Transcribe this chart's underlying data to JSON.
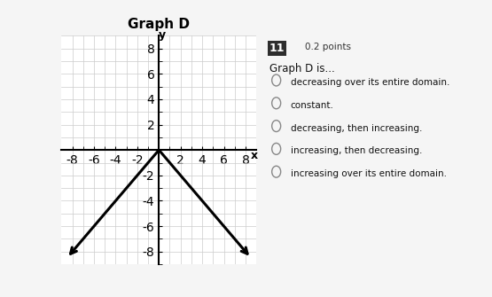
{
  "graph_title": "Graph D",
  "xlabel": "x",
  "ylabel": "y",
  "xlim": [
    -9,
    9
  ],
  "ylim": [
    -9,
    9
  ],
  "xticks": [
    -8,
    -6,
    -4,
    -2,
    2,
    4,
    6,
    8
  ],
  "yticks": [
    -8,
    -6,
    -4,
    -2,
    2,
    4,
    6,
    8
  ],
  "line_x": [
    -8.5,
    0,
    8.5
  ],
  "line_y": [
    -8.5,
    0,
    -8.5
  ],
  "line_color": "#000000",
  "line_width": 2.2,
  "grid_color": "#cccccc",
  "background_color": "#ffffff",
  "panel_bg": "#f0f0f0",
  "question_number": "11",
  "question_points": "0.2 points",
  "question_text": "Graph D is...",
  "options": [
    "decreasing over its entire domain.",
    "constant.",
    "decreasing, then increasing.",
    "increasing, then decreasing.",
    "increasing over its entire domain."
  ]
}
